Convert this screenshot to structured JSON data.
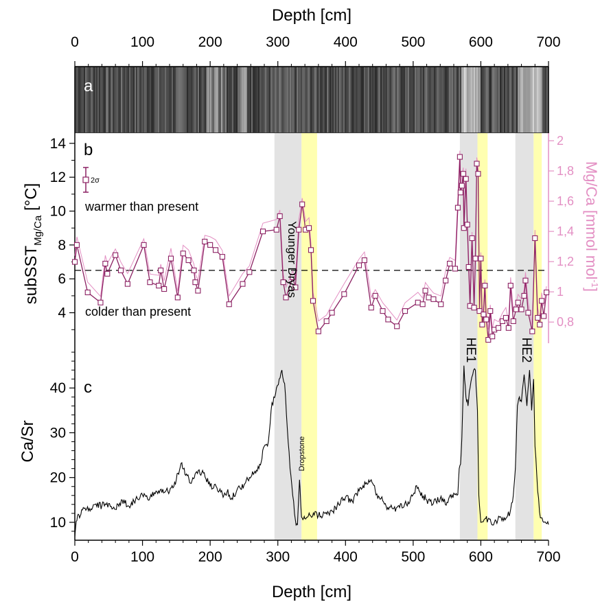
{
  "colors": {
    "mgca": "#e38fc3",
    "sst": "#8b2062",
    "shade_grey": "#e3e3e3",
    "shade_yellow": "#ffffb0",
    "casr": "#000000"
  },
  "axes": {
    "xlabel_top": "Depth [cm]",
    "xlabel_bottom": "Depth [cm]",
    "x_ticks": [
      "0",
      "100",
      "200",
      "300",
      "400",
      "500",
      "600",
      "700"
    ],
    "sst_ylabel_main": "subSST",
    "sst_ylabel_sub": "Mg/Ca",
    "sst_ylabel_unit": " [°C]",
    "sst_ticks": [
      "4",
      "6",
      "8",
      "10",
      "12",
      "14"
    ],
    "mgca_ylabel": "Mg/Ca [mmol mol",
    "mgca_ylabel_sup": "-1",
    "mgca_ylabel_end": "]",
    "mgca_ticks": [
      "0,8",
      "1",
      "1,2",
      "1,4",
      "1,6",
      "1,8",
      "2"
    ],
    "casr_ylabel": "Ca/Sr",
    "casr_ticks": [
      "10",
      "20",
      "30",
      "40"
    ]
  },
  "labels": {
    "panel_a": "a",
    "panel_b": "b",
    "panel_c": "c",
    "warmer": "warmer than present",
    "colder": "colder than present",
    "younger_dryas": "Younger Dryas",
    "dropstone": "Dropstone",
    "he1": "HE1",
    "he2": "HE2",
    "error_bar": "2σ"
  },
  "chart_data": {
    "type": "line",
    "x_range": [
      0,
      700
    ],
    "shaded_intervals": [
      {
        "name": "Younger Dryas",
        "color": "grey",
        "x": [
          295,
          335
        ]
      },
      {
        "name": "",
        "color": "yellow",
        "x": [
          335,
          358
        ]
      },
      {
        "name": "HE1",
        "color": "grey",
        "x": [
          569,
          595
        ]
      },
      {
        "name": "",
        "color": "yellow",
        "x": [
          595,
          610
        ]
      },
      {
        "name": "HE2",
        "color": "grey",
        "x": [
          651,
          678
        ]
      },
      {
        "name": "",
        "color": "yellow",
        "x": [
          678,
          690
        ]
      }
    ],
    "present_reference_sst": 6.5,
    "panel_b": {
      "sst_range": [
        2.2,
        14.6
      ],
      "mgca_range": [
        0.66,
        2.05
      ],
      "sst_series": {
        "x": [
          0,
          3,
          19,
          38,
          45,
          48,
          60,
          68,
          78,
          102,
          111,
          124,
          127,
          132,
          142,
          152,
          160,
          168,
          176,
          178,
          182,
          192,
          200,
          208,
          218,
          228,
          248,
          258,
          278,
          298,
          303,
          308,
          312,
          322,
          326,
          331,
          336,
          341,
          346,
          349,
          352,
          360,
          372,
          380,
          398,
          420,
          428,
          438,
          444,
          455,
          463,
          476,
          488,
          507,
          514,
          518,
          523,
          530,
          541,
          548,
          554,
          562,
          566,
          569,
          570,
          572,
          574,
          575,
          578,
          580,
          582,
          584,
          587,
          590,
          592,
          594,
          596,
          598,
          600,
          602,
          604,
          606,
          608,
          611,
          614,
          617,
          620,
          626,
          632,
          637,
          641,
          644,
          648,
          652,
          655,
          660,
          664,
          666,
          670,
          676,
          680,
          684,
          687,
          690,
          693,
          697
        ],
        "y": [
          7.0,
          8.0,
          5.2,
          4.6,
          6.9,
          6.3,
          7.4,
          6.5,
          5.7,
          8.0,
          5.8,
          5.6,
          6.5,
          5.4,
          7.2,
          4.9,
          7.5,
          7.1,
          6.5,
          5.8,
          5.3,
          8.2,
          8.0,
          7.7,
          7.3,
          4.5,
          5.7,
          6.4,
          8.8,
          8.9,
          9.7,
          5.8,
          4.9,
          6.1,
          5.5,
          8.9,
          10.4,
          8.9,
          9.0,
          7.7,
          4.7,
          2.9,
          3.5,
          4.0,
          5.1,
          6.8,
          7.1,
          4.3,
          5.0,
          4.1,
          3.6,
          3.2,
          4.1,
          4.6,
          4.5,
          5.3,
          4.9,
          4.8,
          4.5,
          5.9,
          6.9,
          6.6,
          10.2,
          13.2,
          11.1,
          11.5,
          12.2,
          9.0,
          11.9,
          9.2,
          6.7,
          4.4,
          8.4,
          4.3,
          7.2,
          12.8,
          12.2,
          4.1,
          7.2,
          3.3,
          3.9,
          5.6,
          3.6,
          2.4,
          4.1,
          2.6,
          3.0,
          3.1,
          3.5,
          3.7,
          3.1,
          5.6,
          3.5,
          4.2,
          4.6,
          4.2,
          5.0,
          5.9,
          4.0,
          2.9,
          8.4,
          3.7,
          3.3,
          4.7,
          3.8,
          5.2
        ],
        "error_bar_2sigma_sst": 1.4
      },
      "mgca_series_note": "thin pink line tracks the subSST curve slightly higher"
    },
    "panel_c": {
      "casr_range": [
        6,
        50
      ],
      "note": "Ca/Sr XRF scan (Depth vs Ca/Sr)",
      "x": [
        0,
        2,
        4,
        7,
        10,
        15,
        20,
        30,
        40,
        50,
        60,
        70,
        80,
        90,
        100,
        110,
        120,
        130,
        140,
        150,
        157,
        165,
        172,
        180,
        190,
        200,
        210,
        218,
        225,
        232,
        240,
        250,
        258,
        265,
        272,
        280,
        286,
        290,
        294,
        298,
        302,
        306,
        310,
        314,
        318,
        322,
        326,
        329,
        332,
        335,
        337,
        340,
        345,
        350,
        355,
        360,
        370,
        380,
        390,
        400,
        410,
        420,
        426,
        432,
        438,
        444,
        450,
        455,
        460,
        470,
        480,
        490,
        500,
        505,
        510,
        520,
        530,
        540,
        550,
        560,
        566,
        568,
        570,
        572,
        575,
        578,
        581,
        584,
        588,
        592,
        595,
        597,
        600,
        606,
        615,
        625,
        635,
        643,
        648,
        651,
        654,
        657,
        660,
        664,
        668,
        672,
        675,
        678,
        680,
        684,
        688,
        693,
        700
      ],
      "y": [
        6.8,
        10.2,
        11.5,
        11.0,
        12.8,
        13.2,
        12.6,
        14.0,
        13.7,
        14.2,
        12.9,
        15.0,
        13.6,
        15.2,
        16.1,
        15.0,
        17.0,
        17.4,
        16.9,
        19.6,
        23.2,
        20.8,
        18.7,
        21.3,
        21.0,
        18.1,
        17.7,
        16.3,
        16.8,
        15.4,
        17.4,
        18.3,
        20.0,
        21.0,
        22.0,
        27.0,
        28.0,
        35.0,
        38.0,
        40.0,
        42.0,
        44.0,
        41.0,
        31.0,
        22.0,
        16.0,
        10.5,
        9.5,
        19.5,
        11.2,
        10.6,
        10.8,
        11.4,
        11.1,
        12.4,
        11.5,
        12.0,
        12.5,
        14.0,
        15.6,
        14.8,
        17.0,
        18.2,
        18.5,
        19.5,
        17.0,
        15.5,
        14.8,
        13.6,
        13.0,
        13.3,
        14.0,
        16.2,
        18.2,
        16.8,
        15.0,
        14.3,
        15.3,
        14.5,
        16.5,
        16.2,
        22.0,
        23.0,
        29.0,
        45.0,
        38.0,
        36.0,
        40.0,
        43.0,
        44.0,
        35.0,
        16.0,
        10.0,
        10.8,
        10.0,
        10.5,
        11.0,
        12.0,
        16.0,
        22.0,
        36.0,
        38.0,
        37.0,
        43.0,
        36.0,
        44.0,
        35.0,
        42.0,
        27.0,
        17.0,
        11.0,
        10.0,
        9.5
      ]
    }
  }
}
